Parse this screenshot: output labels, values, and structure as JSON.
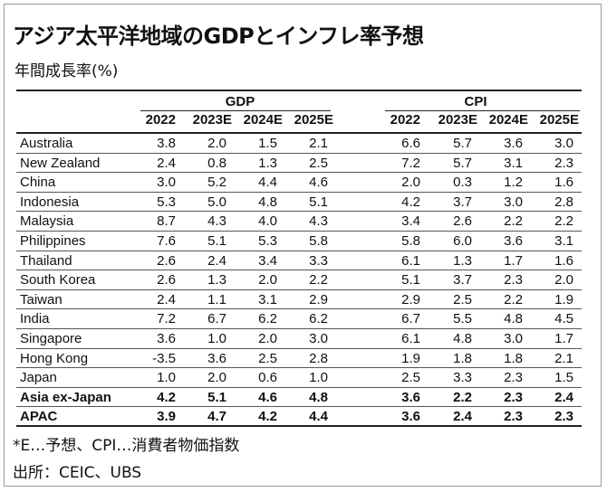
{
  "title": "アジア太平洋地域のGDPとインフレ率予想",
  "subtitle": "年間成長率(%)",
  "groups": {
    "gdp": "GDP",
    "cpi": "CPI"
  },
  "years": [
    "2022",
    "2023E",
    "2024E",
    "2025E"
  ],
  "rows": [
    {
      "country": "Australia",
      "gdp": [
        "3.8",
        "2.0",
        "1.5",
        "2.1"
      ],
      "cpi": [
        "6.6",
        "5.7",
        "3.6",
        "3.0"
      ]
    },
    {
      "country": "New Zealand",
      "gdp": [
        "2.4",
        "0.8",
        "1.3",
        "2.5"
      ],
      "cpi": [
        "7.2",
        "5.7",
        "3.1",
        "2.3"
      ]
    },
    {
      "country": "China",
      "gdp": [
        "3.0",
        "5.2",
        "4.4",
        "4.6"
      ],
      "cpi": [
        "2.0",
        "0.3",
        "1.2",
        "1.6"
      ]
    },
    {
      "country": "Indonesia",
      "gdp": [
        "5.3",
        "5.0",
        "4.8",
        "5.1"
      ],
      "cpi": [
        "4.2",
        "3.7",
        "3.0",
        "2.8"
      ]
    },
    {
      "country": "Malaysia",
      "gdp": [
        "8.7",
        "4.3",
        "4.0",
        "4.3"
      ],
      "cpi": [
        "3.4",
        "2.6",
        "2.2",
        "2.2"
      ]
    },
    {
      "country": "Philippines",
      "gdp": [
        "7.6",
        "5.1",
        "5.3",
        "5.8"
      ],
      "cpi": [
        "5.8",
        "6.0",
        "3.6",
        "3.1"
      ]
    },
    {
      "country": "Thailand",
      "gdp": [
        "2.6",
        "2.4",
        "3.4",
        "3.3"
      ],
      "cpi": [
        "6.1",
        "1.3",
        "1.7",
        "1.6"
      ]
    },
    {
      "country": "South Korea",
      "gdp": [
        "2.6",
        "1.3",
        "2.0",
        "2.2"
      ],
      "cpi": [
        "5.1",
        "3.7",
        "2.3",
        "2.0"
      ]
    },
    {
      "country": "Taiwan",
      "gdp": [
        "2.4",
        "1.1",
        "3.1",
        "2.9"
      ],
      "cpi": [
        "2.9",
        "2.5",
        "2.2",
        "1.9"
      ]
    },
    {
      "country": "India",
      "gdp": [
        "7.2",
        "6.7",
        "6.2",
        "6.2"
      ],
      "cpi": [
        "6.7",
        "5.5",
        "4.8",
        "4.5"
      ]
    },
    {
      "country": "Singapore",
      "gdp": [
        "3.6",
        "1.0",
        "2.0",
        "3.0"
      ],
      "cpi": [
        "6.1",
        "4.8",
        "3.0",
        "1.7"
      ]
    },
    {
      "country": "Hong Kong",
      "gdp": [
        "-3.5",
        "3.6",
        "2.5",
        "2.8"
      ],
      "cpi": [
        "1.9",
        "1.8",
        "1.8",
        "2.1"
      ]
    },
    {
      "country": "Japan",
      "gdp": [
        "1.0",
        "2.0",
        "0.6",
        "1.0"
      ],
      "cpi": [
        "2.5",
        "3.3",
        "2.3",
        "1.5"
      ]
    },
    {
      "country": "Asia ex-Japan",
      "gdp": [
        "4.2",
        "5.1",
        "4.6",
        "4.8"
      ],
      "cpi": [
        "3.6",
        "2.2",
        "2.3",
        "2.4"
      ],
      "bold": true
    },
    {
      "country": "APAC",
      "gdp": [
        "3.9",
        "4.7",
        "4.2",
        "4.4"
      ],
      "cpi": [
        "3.6",
        "2.4",
        "2.3",
        "2.3"
      ],
      "bold": true
    }
  ],
  "footnote": "*E…予想、CPI…消費者物価指数",
  "source": "出所：CEIC、UBS"
}
